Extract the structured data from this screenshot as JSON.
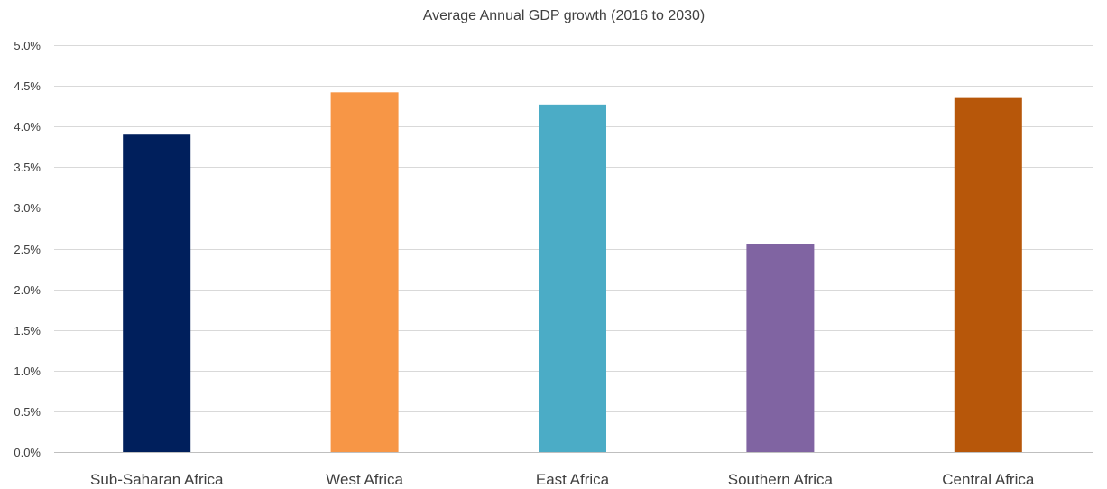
{
  "chart_data": {
    "type": "bar",
    "title": "Average Annual GDP growth (2016 to 2030)",
    "xlabel": "",
    "ylabel": "",
    "categories": [
      "Sub-Saharan Africa",
      "West Africa",
      "East Africa",
      "Southern Africa",
      "Central Africa"
    ],
    "values": [
      3.9,
      4.42,
      4.27,
      2.56,
      4.35
    ],
    "value_unit": "%",
    "ylim": [
      0,
      5
    ],
    "ytick_values": [
      0,
      0.5,
      1,
      1.5,
      2,
      2.5,
      3,
      3.5,
      4,
      4.5,
      5
    ],
    "yticks": [
      "0.0%",
      "0.5%",
      "1.0%",
      "1.5%",
      "2.0%",
      "2.5%",
      "3.0%",
      "3.5%",
      "4.0%",
      "4.5%",
      "5.0%"
    ],
    "bar_colors": [
      "#001f5c",
      "#f79646",
      "#4bacc6",
      "#8064a2",
      "#b7570a"
    ],
    "grid": true,
    "legend": "none"
  }
}
